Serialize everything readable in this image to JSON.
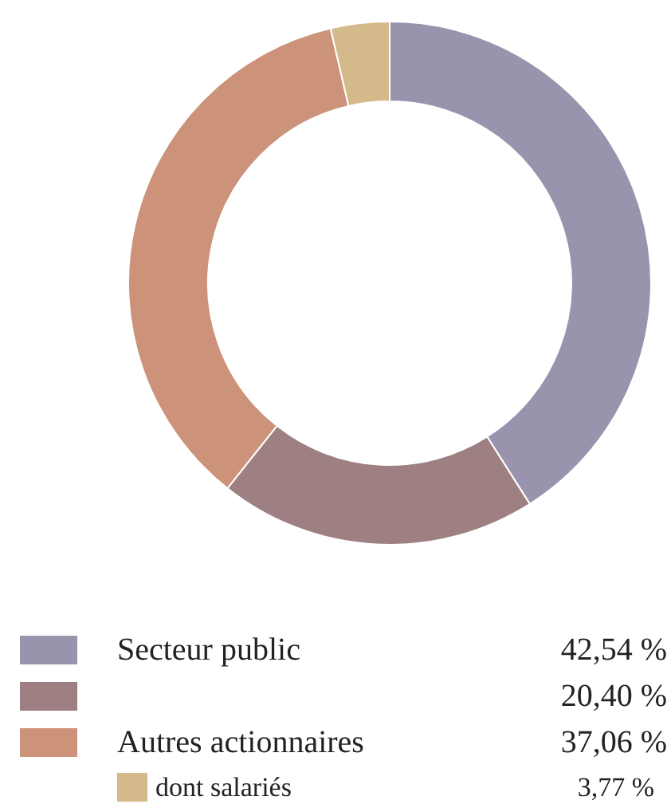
{
  "chart_data": {
    "type": "donut",
    "categories": [
      "Secteur public",
      null,
      "Autres actionnaires",
      "dont salariés"
    ],
    "values": [
      42.54,
      20.4,
      37.06,
      3.77
    ],
    "colors": [
      "#9a93ad",
      "#9e7f82",
      "#cc927a",
      "#d4b98a"
    ],
    "value_labels": [
      "42,54 %",
      "20,40 %",
      "37,06 %",
      "3,77 %"
    ],
    "legend": "bottom"
  }
}
